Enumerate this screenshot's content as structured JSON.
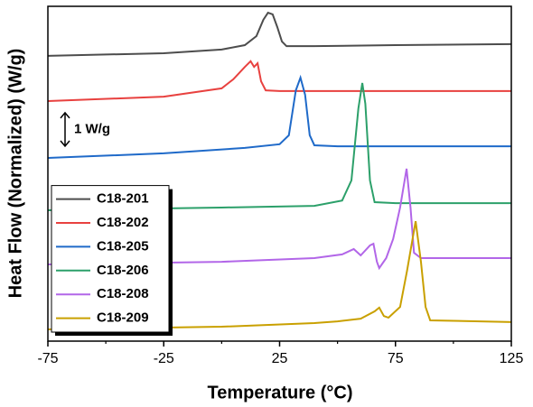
{
  "chart_data": {
    "type": "line",
    "xlabel": "Temperature (°C)",
    "ylabel": "Heat Flow (Normalized) (W/g)",
    "xlim": [
      -75,
      125
    ],
    "xticks": [
      -75,
      -25,
      25,
      75,
      125
    ],
    "xminor_ticks": [
      -50,
      0,
      50,
      100
    ],
    "ylim": [
      0,
      10
    ],
    "legend": "lower left",
    "scale_bar": {
      "label": "1 W/g",
      "value": 1
    },
    "series": [
      {
        "name": "C18-201",
        "color": "#4d4d4d",
        "x": [
          -75,
          -25,
          0,
          10,
          15,
          18,
          20,
          22,
          24,
          26,
          28,
          40,
          75,
          125
        ],
        "values": [
          8.52,
          8.6,
          8.71,
          8.84,
          9.11,
          9.6,
          9.81,
          9.76,
          9.38,
          8.95,
          8.81,
          8.81,
          8.84,
          8.87
        ]
      },
      {
        "name": "C18-202",
        "color": "#e8413f",
        "x": [
          -75,
          -25,
          0,
          5,
          10,
          12.5,
          14,
          15.5,
          17,
          19,
          25,
          75,
          125
        ],
        "values": [
          7.17,
          7.3,
          7.55,
          7.82,
          8.19,
          8.36,
          8.19,
          8.3,
          7.76,
          7.49,
          7.47,
          7.47,
          7.47
        ]
      },
      {
        "name": "C18-205",
        "color": "#1f6ac9",
        "x": [
          -75,
          -25,
          10,
          25,
          29,
          32,
          34,
          36,
          38,
          40,
          50,
          125
        ],
        "values": [
          5.47,
          5.61,
          5.77,
          5.88,
          6.15,
          7.49,
          7.87,
          7.36,
          6.15,
          5.85,
          5.82,
          5.82
        ]
      },
      {
        "name": "C18-206",
        "color": "#2ca06a",
        "x": [
          -75,
          0,
          40,
          52,
          56,
          59,
          60.7,
          62,
          64,
          66,
          75,
          125
        ],
        "values": [
          3.91,
          3.99,
          4.04,
          4.2,
          4.8,
          6.95,
          7.71,
          7.09,
          4.8,
          4.15,
          4.12,
          4.12
        ]
      },
      {
        "name": "C18-208",
        "color": "#b266e8",
        "x": [
          -75,
          0,
          40,
          52,
          57,
          60,
          64,
          65.5,
          67,
          68,
          71,
          74,
          77,
          79.8,
          81.5,
          83,
          86,
          125
        ],
        "values": [
          2.29,
          2.37,
          2.48,
          2.59,
          2.75,
          2.56,
          2.86,
          2.91,
          2.37,
          2.18,
          2.48,
          3.05,
          3.99,
          5.15,
          3.99,
          2.64,
          2.48,
          2.48
        ]
      },
      {
        "name": "C18-209",
        "color": "#c9a000",
        "x": [
          -75,
          0,
          40,
          50,
          60,
          66,
          68,
          70,
          72,
          77,
          80,
          83.7,
          86,
          88,
          90,
          125
        ],
        "values": [
          0.35,
          0.43,
          0.54,
          0.59,
          0.67,
          0.89,
          1.0,
          0.75,
          0.7,
          1.02,
          2.1,
          3.58,
          2.37,
          1.02,
          0.62,
          0.57
        ]
      }
    ]
  }
}
